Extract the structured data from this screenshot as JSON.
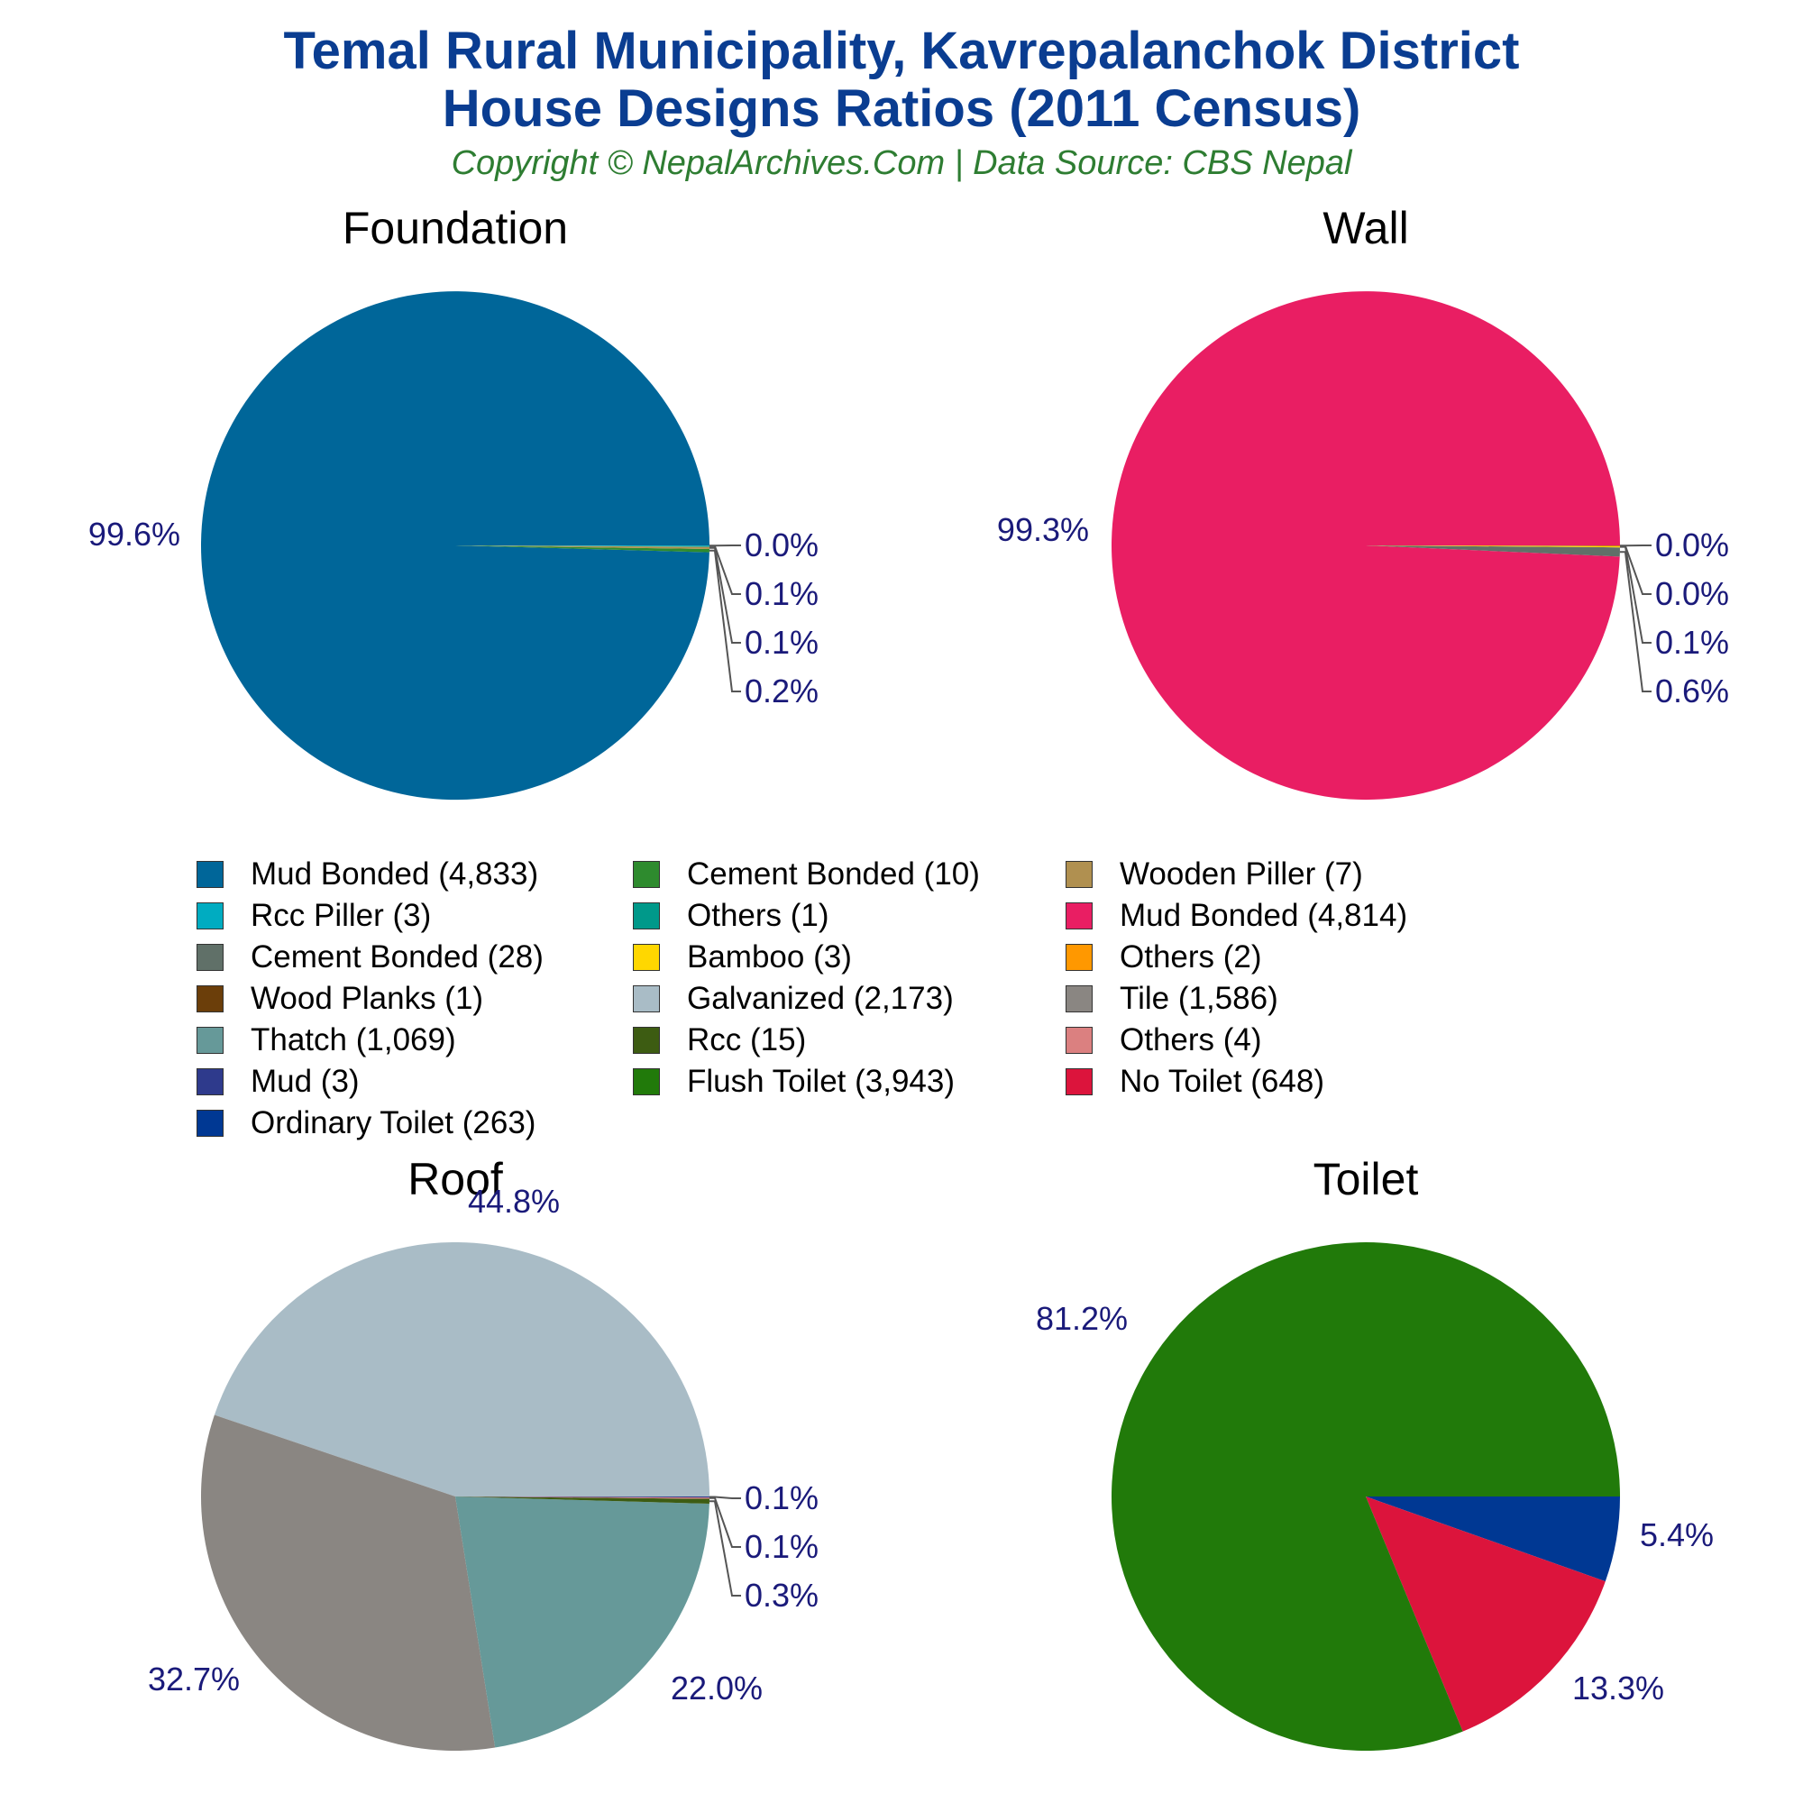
{
  "title_line1": "Temal Rural Municipality, Kavrepalanchok District",
  "title_line2": "House Designs Ratios (2011 Census)",
  "subtitle": "Copyright © NepalArchives.Com | Data Source: CBS Nepal",
  "chart_data": [
    {
      "type": "pie",
      "title": "Foundation",
      "slices": [
        {
          "label": "Mud Bonded (4,833)",
          "value": 4833,
          "pct_label": "99.6%",
          "color": "#006699"
        },
        {
          "label": "Cement Bonded (10)",
          "value": 10,
          "pct_label": "0.2%",
          "color": "#2e8b2e"
        },
        {
          "label": "Wooden Piller (7)",
          "value": 7,
          "pct_label": "0.1%",
          "color": "#b09050"
        },
        {
          "label": "Rcc Piller (3)",
          "value": 3,
          "pct_label": "0.1%",
          "color": "#00acc1"
        },
        {
          "label": "Others (1)",
          "value": 1,
          "pct_label": "0.0%",
          "color": "#00998a"
        }
      ]
    },
    {
      "type": "pie",
      "title": "Wall",
      "slices": [
        {
          "label": "Mud Bonded (4,814)",
          "value": 4814,
          "pct_label": "99.3%",
          "color": "#e91e63"
        },
        {
          "label": "Cement Bonded (28)",
          "value": 28,
          "pct_label": "0.6%",
          "color": "#607068"
        },
        {
          "label": "Bamboo (3)",
          "value": 3,
          "pct_label": "0.1%",
          "color": "#ffd700"
        },
        {
          "label": "Others (2)",
          "value": 2,
          "pct_label": "0.0%",
          "color": "#ff9800"
        },
        {
          "label": "Wood Planks (1)",
          "value": 1,
          "pct_label": "0.0%",
          "color": "#6b3e0a"
        }
      ]
    },
    {
      "type": "pie",
      "title": "Roof",
      "slices": [
        {
          "label": "Galvanized (2,173)",
          "value": 2173,
          "pct_label": "44.8%",
          "color": "#a9bcc6"
        },
        {
          "label": "Tile (1,586)",
          "value": 1586,
          "pct_label": "32.7%",
          "color": "#8a8682"
        },
        {
          "label": "Thatch (1,069)",
          "value": 1069,
          "pct_label": "22.0%",
          "color": "#669999"
        },
        {
          "label": "Rcc (15)",
          "value": 15,
          "pct_label": "0.3%",
          "color": "#3d5c12"
        },
        {
          "label": "Others (4)",
          "value": 4,
          "pct_label": "0.1%",
          "color": "#db8080"
        },
        {
          "label": "Mud (3)",
          "value": 3,
          "pct_label": "0.1%",
          "color": "#2e3a8c"
        }
      ]
    },
    {
      "type": "pie",
      "title": "Toilet",
      "slices": [
        {
          "label": "Flush Toilet (3,943)",
          "value": 3943,
          "pct_label": "81.2%",
          "color": "#217a0a"
        },
        {
          "label": "No Toilet (648)",
          "value": 648,
          "pct_label": "13.3%",
          "color": "#dc143c"
        },
        {
          "label": "Ordinary Toilet (263)",
          "value": 263,
          "pct_label": "5.4%",
          "color": "#003893"
        }
      ]
    }
  ],
  "legend": [
    {
      "label": "Mud Bonded (4,833)",
      "color": "#006699"
    },
    {
      "label": "Cement Bonded (10)",
      "color": "#2e8b2e"
    },
    {
      "label": "Wooden Piller (7)",
      "color": "#b09050"
    },
    {
      "label": "Rcc Piller (3)",
      "color": "#00acc1"
    },
    {
      "label": "Others (1)",
      "color": "#00998a"
    },
    {
      "label": "Mud Bonded (4,814)",
      "color": "#e91e63"
    },
    {
      "label": "Cement Bonded (28)",
      "color": "#607068"
    },
    {
      "label": "Bamboo (3)",
      "color": "#ffd700"
    },
    {
      "label": "Others (2)",
      "color": "#ff9800"
    },
    {
      "label": "Wood Planks (1)",
      "color": "#6b3e0a"
    },
    {
      "label": "Galvanized (2,173)",
      "color": "#a9bcc6"
    },
    {
      "label": "Tile (1,586)",
      "color": "#8a8682"
    },
    {
      "label": "Thatch (1,069)",
      "color": "#669999"
    },
    {
      "label": "Rcc (15)",
      "color": "#3d5c12"
    },
    {
      "label": "Others (4)",
      "color": "#db8080"
    },
    {
      "label": "Mud (3)",
      "color": "#2e3a8c"
    },
    {
      "label": "Flush Toilet (3,943)",
      "color": "#217a0a"
    },
    {
      "label": "No Toilet (648)",
      "color": "#dc143c"
    },
    {
      "label": "Ordinary Toilet (263)",
      "color": "#003893"
    }
  ]
}
